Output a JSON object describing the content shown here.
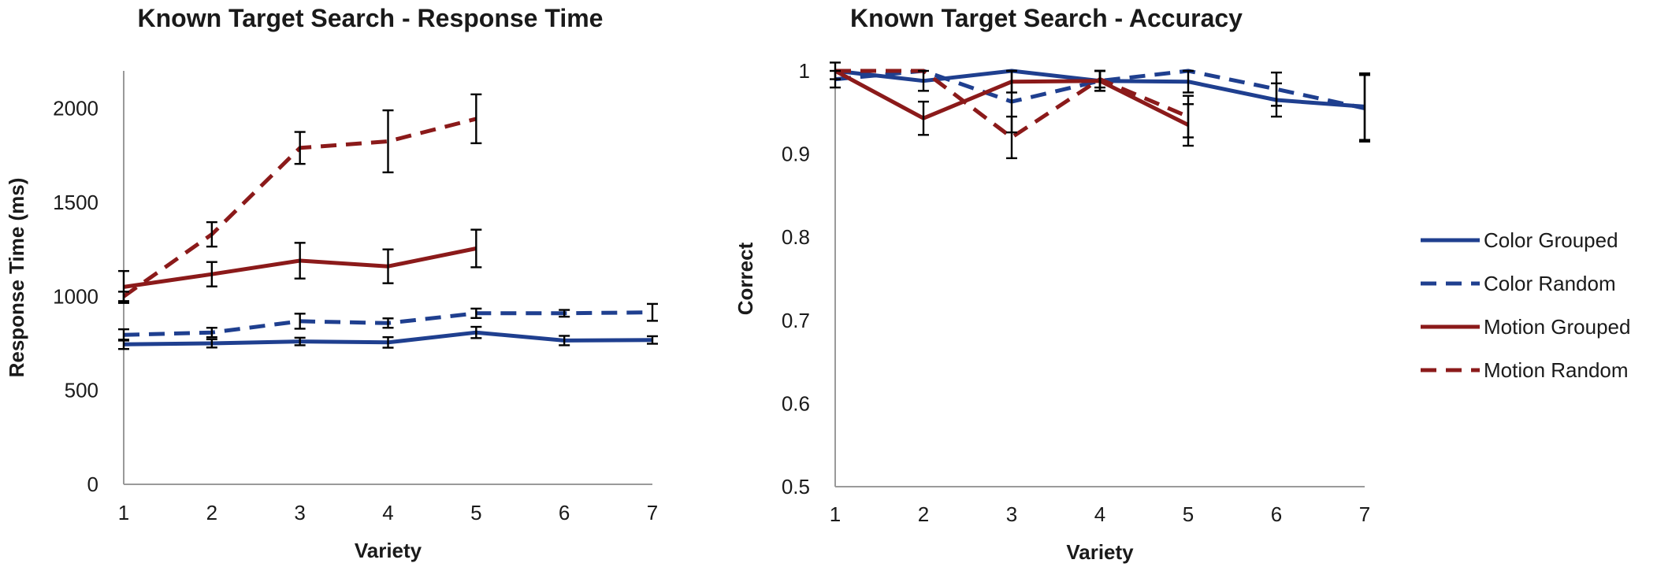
{
  "colors": {
    "color": "#1f3f8f",
    "motion": "#8b1a1a"
  },
  "chart_data": [
    {
      "type": "line",
      "title": "Known Target Search - Response Time",
      "xlabel": "Variety",
      "ylabel": "Response Time (ms)",
      "ylim": [
        0,
        2200
      ],
      "xlim": [
        1,
        7
      ],
      "yticks": [
        0,
        500,
        1000,
        1500,
        2000
      ],
      "xticks": [
        1,
        2,
        3,
        4,
        5,
        6,
        7
      ],
      "grid": false,
      "series": [
        {
          "name": "Color Grouped",
          "style": "solid",
          "colorKey": "color",
          "x": [
            1,
            2,
            3,
            4,
            5,
            6,
            7
          ],
          "y": [
            745,
            750,
            760,
            755,
            808,
            765,
            768
          ],
          "err": [
            25,
            22,
            20,
            28,
            30,
            25,
            20
          ]
        },
        {
          "name": "Color Random",
          "style": "dashed",
          "colorKey": "color",
          "x": [
            1,
            2,
            3,
            4,
            5,
            6,
            7
          ],
          "y": [
            795,
            808,
            868,
            858,
            910,
            910,
            915
          ],
          "err": [
            30,
            25,
            40,
            25,
            25,
            18,
            45
          ]
        },
        {
          "name": "Motion Grouped",
          "style": "solid",
          "colorKey": "motion",
          "x": [
            1,
            2,
            3,
            4,
            5
          ],
          "y": [
            1050,
            1118,
            1190,
            1160,
            1255
          ],
          "err": [
            85,
            65,
            95,
            90,
            100
          ]
        },
        {
          "name": "Motion Random",
          "style": "dashed",
          "colorKey": "motion",
          "x": [
            1,
            2,
            3,
            4,
            5
          ],
          "y": [
            1000,
            1330,
            1790,
            1825,
            1945
          ],
          "err": [
            25,
            65,
            85,
            165,
            130
          ]
        }
      ]
    },
    {
      "type": "line",
      "title": "Known Target Search - Accuracy",
      "xlabel": "Variety",
      "ylabel": "Correct",
      "ylim": [
        0.5,
        1.0
      ],
      "xlim": [
        1,
        7
      ],
      "yticks": [
        0.5,
        0.6,
        0.7,
        0.8,
        0.9,
        1
      ],
      "xticks": [
        1,
        2,
        3,
        4,
        5,
        6,
        7
      ],
      "grid": false,
      "legend": "right",
      "series": [
        {
          "name": "Color Grouped",
          "style": "solid",
          "colorKey": "color",
          "x": [
            1,
            2,
            3,
            4,
            5,
            6,
            7
          ],
          "y": [
            1.0,
            0.988,
            1.0,
            0.988,
            0.987,
            0.965,
            0.957
          ],
          "err": [
            0.01,
            0.012,
            0,
            0.012,
            0.013,
            0.02,
            0.04
          ]
        },
        {
          "name": "Color Random",
          "style": "dashed",
          "colorKey": "color",
          "x": [
            1,
            2,
            3,
            4,
            5,
            6,
            7
          ],
          "y": [
            0.99,
            1.0,
            0.963,
            0.988,
            1.0,
            0.978,
            0.955
          ],
          "err": [
            0.01,
            0,
            0.037,
            0.012,
            0,
            0.02,
            0.04
          ]
        },
        {
          "name": "Motion Grouped",
          "style": "solid",
          "colorKey": "motion",
          "x": [
            1,
            2,
            3,
            4,
            5
          ],
          "y": [
            1.0,
            0.943,
            0.987,
            0.988,
            0.935
          ],
          "err": [
            0,
            0.02,
            0.013,
            0.012,
            0.025
          ]
        },
        {
          "name": "Motion Random",
          "style": "dashed",
          "colorKey": "motion",
          "x": [
            1,
            2,
            3,
            4,
            5
          ],
          "y": [
            1.0,
            1.0,
            0.92,
            0.99,
            0.945
          ],
          "err": [
            0,
            0,
            0.025,
            0.01,
            0.025
          ]
        }
      ]
    }
  ]
}
